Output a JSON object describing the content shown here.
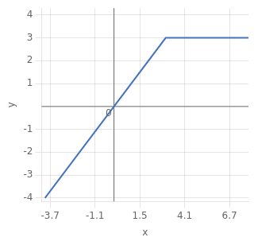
{
  "chart_data": {
    "type": "line",
    "x": [
      -4,
      3,
      7.8
    ],
    "values": [
      -4,
      3,
      3
    ],
    "color": "#4472C4",
    "xlabel": "x",
    "ylabel": "y",
    "xlim": [
      -4.2,
      7.8
    ],
    "ylim": [
      -4.15,
      4.3
    ],
    "xticks": [
      -3.7,
      -1.1,
      1.5,
      4.1,
      6.7
    ],
    "yticks": [
      -4,
      -3,
      -2,
      -1,
      1,
      2,
      3,
      4
    ],
    "grid": true,
    "annotations": [
      {
        "text": "0",
        "x": 0,
        "y": 0
      }
    ]
  }
}
